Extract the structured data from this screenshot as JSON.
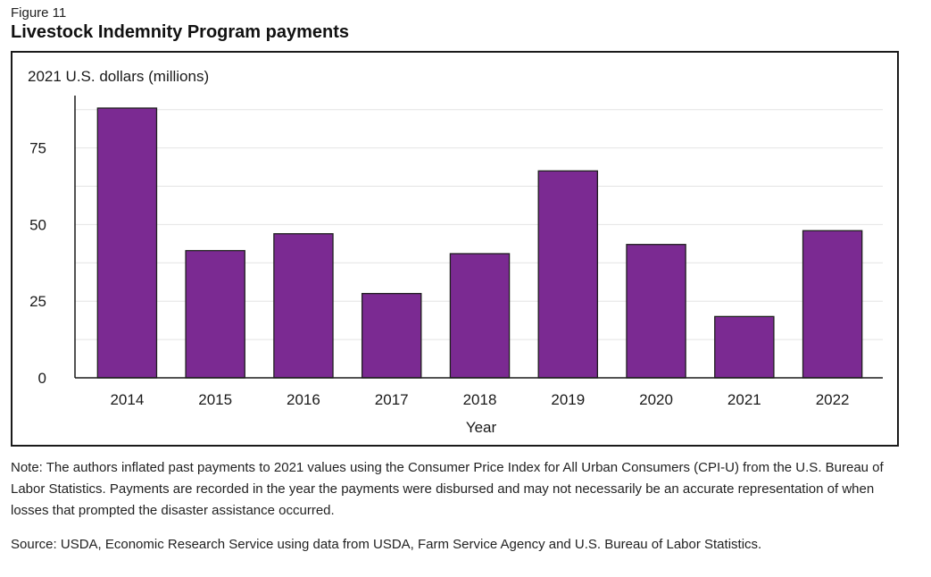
{
  "figure": {
    "label": "Figure 11",
    "title": "Livestock Indemnity Program payments"
  },
  "chart_data": {
    "type": "bar",
    "ylabel": "2021 U.S. dollars (millions)",
    "xlabel": "Year",
    "categories": [
      "2014",
      "2015",
      "2016",
      "2017",
      "2018",
      "2019",
      "2020",
      "2021",
      "2022"
    ],
    "values": [
      88,
      41.5,
      47,
      27.5,
      40.5,
      67.5,
      43.5,
      20,
      48
    ],
    "ylim": [
      0,
      88
    ],
    "yticks": [
      0,
      25,
      50,
      75
    ],
    "grid": true,
    "bar_color": "#7b2a92"
  },
  "notes": {
    "note": "Note: The authors inflated past payments to 2021 values using the Consumer Price Index for All Urban Consumers (CPI-U) from the U.S. Bureau of Labor Statistics. Payments are recorded in the year the payments were disbursed and may not necessarily be an accurate representation of when losses that prompted the disaster assistance occurred.",
    "source": "Source: USDA, Economic Research Service using data from USDA, Farm Service Agency and U.S. Bureau of Labor Statistics."
  }
}
